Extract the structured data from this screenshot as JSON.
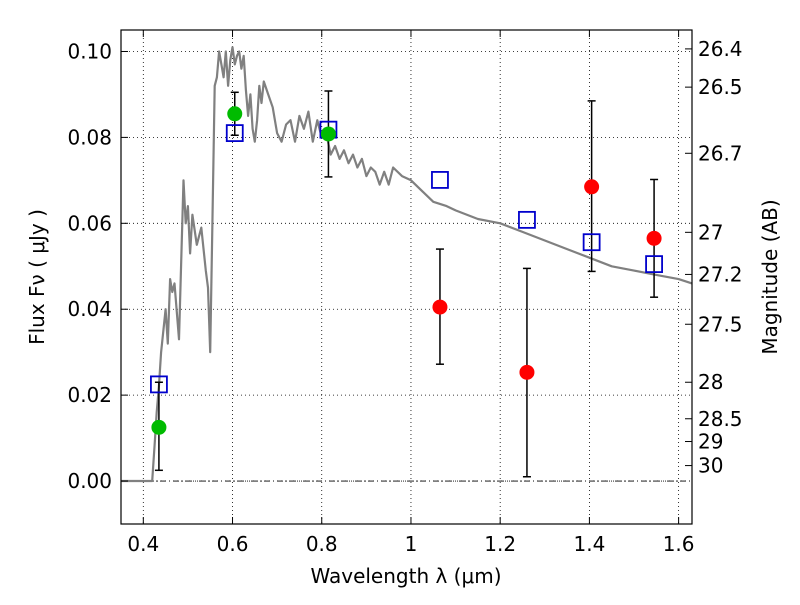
{
  "chart_data": {
    "type": "scatter",
    "xlabel": "Wavelength  λ (μm)",
    "ylabel": "Flux  Fν  ( μJy )",
    "ylabel_right": "Magnitude (AB)",
    "xlim": [
      0.35,
      1.63
    ],
    "ylim": [
      -0.01,
      0.105
    ],
    "grid": true,
    "x_ticks": [
      {
        "value": 0.4,
        "label": "0.4"
      },
      {
        "value": 0.6,
        "label": "0.6"
      },
      {
        "value": 0.8,
        "label": "0.8"
      },
      {
        "value": 1.0,
        "label": "1"
      },
      {
        "value": 1.2,
        "label": "1.2"
      },
      {
        "value": 1.4,
        "label": "1.4"
      },
      {
        "value": 1.6,
        "label": "1.6"
      }
    ],
    "y_ticks": [
      {
        "value": 0.0,
        "label": "0.00"
      },
      {
        "value": 0.02,
        "label": "0.02"
      },
      {
        "value": 0.04,
        "label": "0.04"
      },
      {
        "value": 0.06,
        "label": "0.06"
      },
      {
        "value": 0.08,
        "label": "0.08"
      },
      {
        "value": 0.1,
        "label": "0.10"
      }
    ],
    "right_ticks": [
      {
        "label": "26.4",
        "flux": 0.1006
      },
      {
        "label": "26.5",
        "flux": 0.0917
      },
      {
        "label": "26.7",
        "flux": 0.0763
      },
      {
        "label": "27",
        "flux": 0.0579
      },
      {
        "label": "27.2",
        "flux": 0.0481
      },
      {
        "label": "27.5",
        "flux": 0.0365
      },
      {
        "label": "28",
        "flux": 0.023
      },
      {
        "label": "28.5",
        "flux": 0.0145
      },
      {
        "label": "29",
        "flux": 0.0092
      },
      {
        "label": "30",
        "flux": 0.0036
      }
    ],
    "zero_line": 0.0,
    "series": [
      {
        "kind": "line",
        "color": "#808080",
        "x": [
          0.35,
          0.42,
          0.425,
          0.43,
          0.435,
          0.44,
          0.45,
          0.455,
          0.46,
          0.465,
          0.47,
          0.48,
          0.49,
          0.495,
          0.5,
          0.505,
          0.51,
          0.52,
          0.53,
          0.54,
          0.545,
          0.55,
          0.555,
          0.56,
          0.565,
          0.57,
          0.575,
          0.58,
          0.585,
          0.59,
          0.595,
          0.6,
          0.605,
          0.61,
          0.615,
          0.62,
          0.625,
          0.63,
          0.635,
          0.64,
          0.645,
          0.65,
          0.655,
          0.66,
          0.665,
          0.67,
          0.68,
          0.69,
          0.7,
          0.71,
          0.72,
          0.73,
          0.74,
          0.75,
          0.76,
          0.77,
          0.78,
          0.79,
          0.8,
          0.81,
          0.82,
          0.83,
          0.84,
          0.85,
          0.86,
          0.87,
          0.88,
          0.89,
          0.9,
          0.91,
          0.92,
          0.93,
          0.94,
          0.95,
          0.96,
          0.98,
          1.0,
          1.02,
          1.05,
          1.08,
          1.1,
          1.15,
          1.2,
          1.25,
          1.3,
          1.35,
          1.4,
          1.45,
          1.5,
          1.55,
          1.6,
          1.63
        ],
        "y": [
          0.0,
          0.0,
          0.008,
          0.016,
          0.022,
          0.03,
          0.04,
          0.032,
          0.047,
          0.044,
          0.046,
          0.033,
          0.07,
          0.06,
          0.064,
          0.053,
          0.062,
          0.055,
          0.059,
          0.049,
          0.045,
          0.03,
          0.06,
          0.092,
          0.094,
          0.1,
          0.097,
          0.094,
          0.1,
          0.092,
          0.098,
          0.101,
          0.097,
          0.099,
          0.1,
          0.096,
          0.099,
          0.091,
          0.085,
          0.09,
          0.082,
          0.079,
          0.084,
          0.092,
          0.088,
          0.093,
          0.09,
          0.087,
          0.081,
          0.079,
          0.083,
          0.084,
          0.079,
          0.085,
          0.082,
          0.086,
          0.079,
          0.084,
          0.08,
          0.081,
          0.076,
          0.078,
          0.075,
          0.077,
          0.074,
          0.076,
          0.073,
          0.075,
          0.071,
          0.073,
          0.072,
          0.069,
          0.072,
          0.069,
          0.073,
          0.071,
          0.07,
          0.068,
          0.065,
          0.064,
          0.063,
          0.061,
          0.06,
          0.058,
          0.056,
          0.054,
          0.052,
          0.05,
          0.049,
          0.048,
          0.047,
          0.046
        ]
      },
      {
        "kind": "markers",
        "marker": "square",
        "color": "#0000cc",
        "points": [
          {
            "x": 0.435,
            "y": 0.0225
          },
          {
            "x": 0.605,
            "y": 0.081
          },
          {
            "x": 0.815,
            "y": 0.0818
          },
          {
            "x": 1.065,
            "y": 0.0701
          },
          {
            "x": 1.26,
            "y": 0.0608
          },
          {
            "x": 1.405,
            "y": 0.0556
          },
          {
            "x": 1.545,
            "y": 0.0505
          }
        ]
      },
      {
        "kind": "markers",
        "marker": "circle",
        "color": "#00bb00",
        "points": [
          {
            "x": 0.435,
            "y": 0.0125,
            "err": [
              0.0025,
              0.023
            ]
          },
          {
            "x": 0.605,
            "y": 0.0855,
            "err": [
              0.0805,
              0.0905
            ]
          },
          {
            "x": 0.815,
            "y": 0.0808,
            "err": [
              0.0708,
              0.0908
            ]
          }
        ]
      },
      {
        "kind": "markers",
        "marker": "circle",
        "color": "#ff0000",
        "points": [
          {
            "x": 1.065,
            "y": 0.0405,
            "err": [
              0.0272,
              0.054
            ]
          },
          {
            "x": 1.26,
            "y": 0.0253,
            "err": [
              0.001,
              0.0495
            ]
          },
          {
            "x": 1.405,
            "y": 0.0685,
            "err": [
              0.0488,
              0.0885
            ]
          },
          {
            "x": 1.545,
            "y": 0.0565,
            "err": [
              0.0428,
              0.0702
            ]
          }
        ]
      }
    ]
  }
}
